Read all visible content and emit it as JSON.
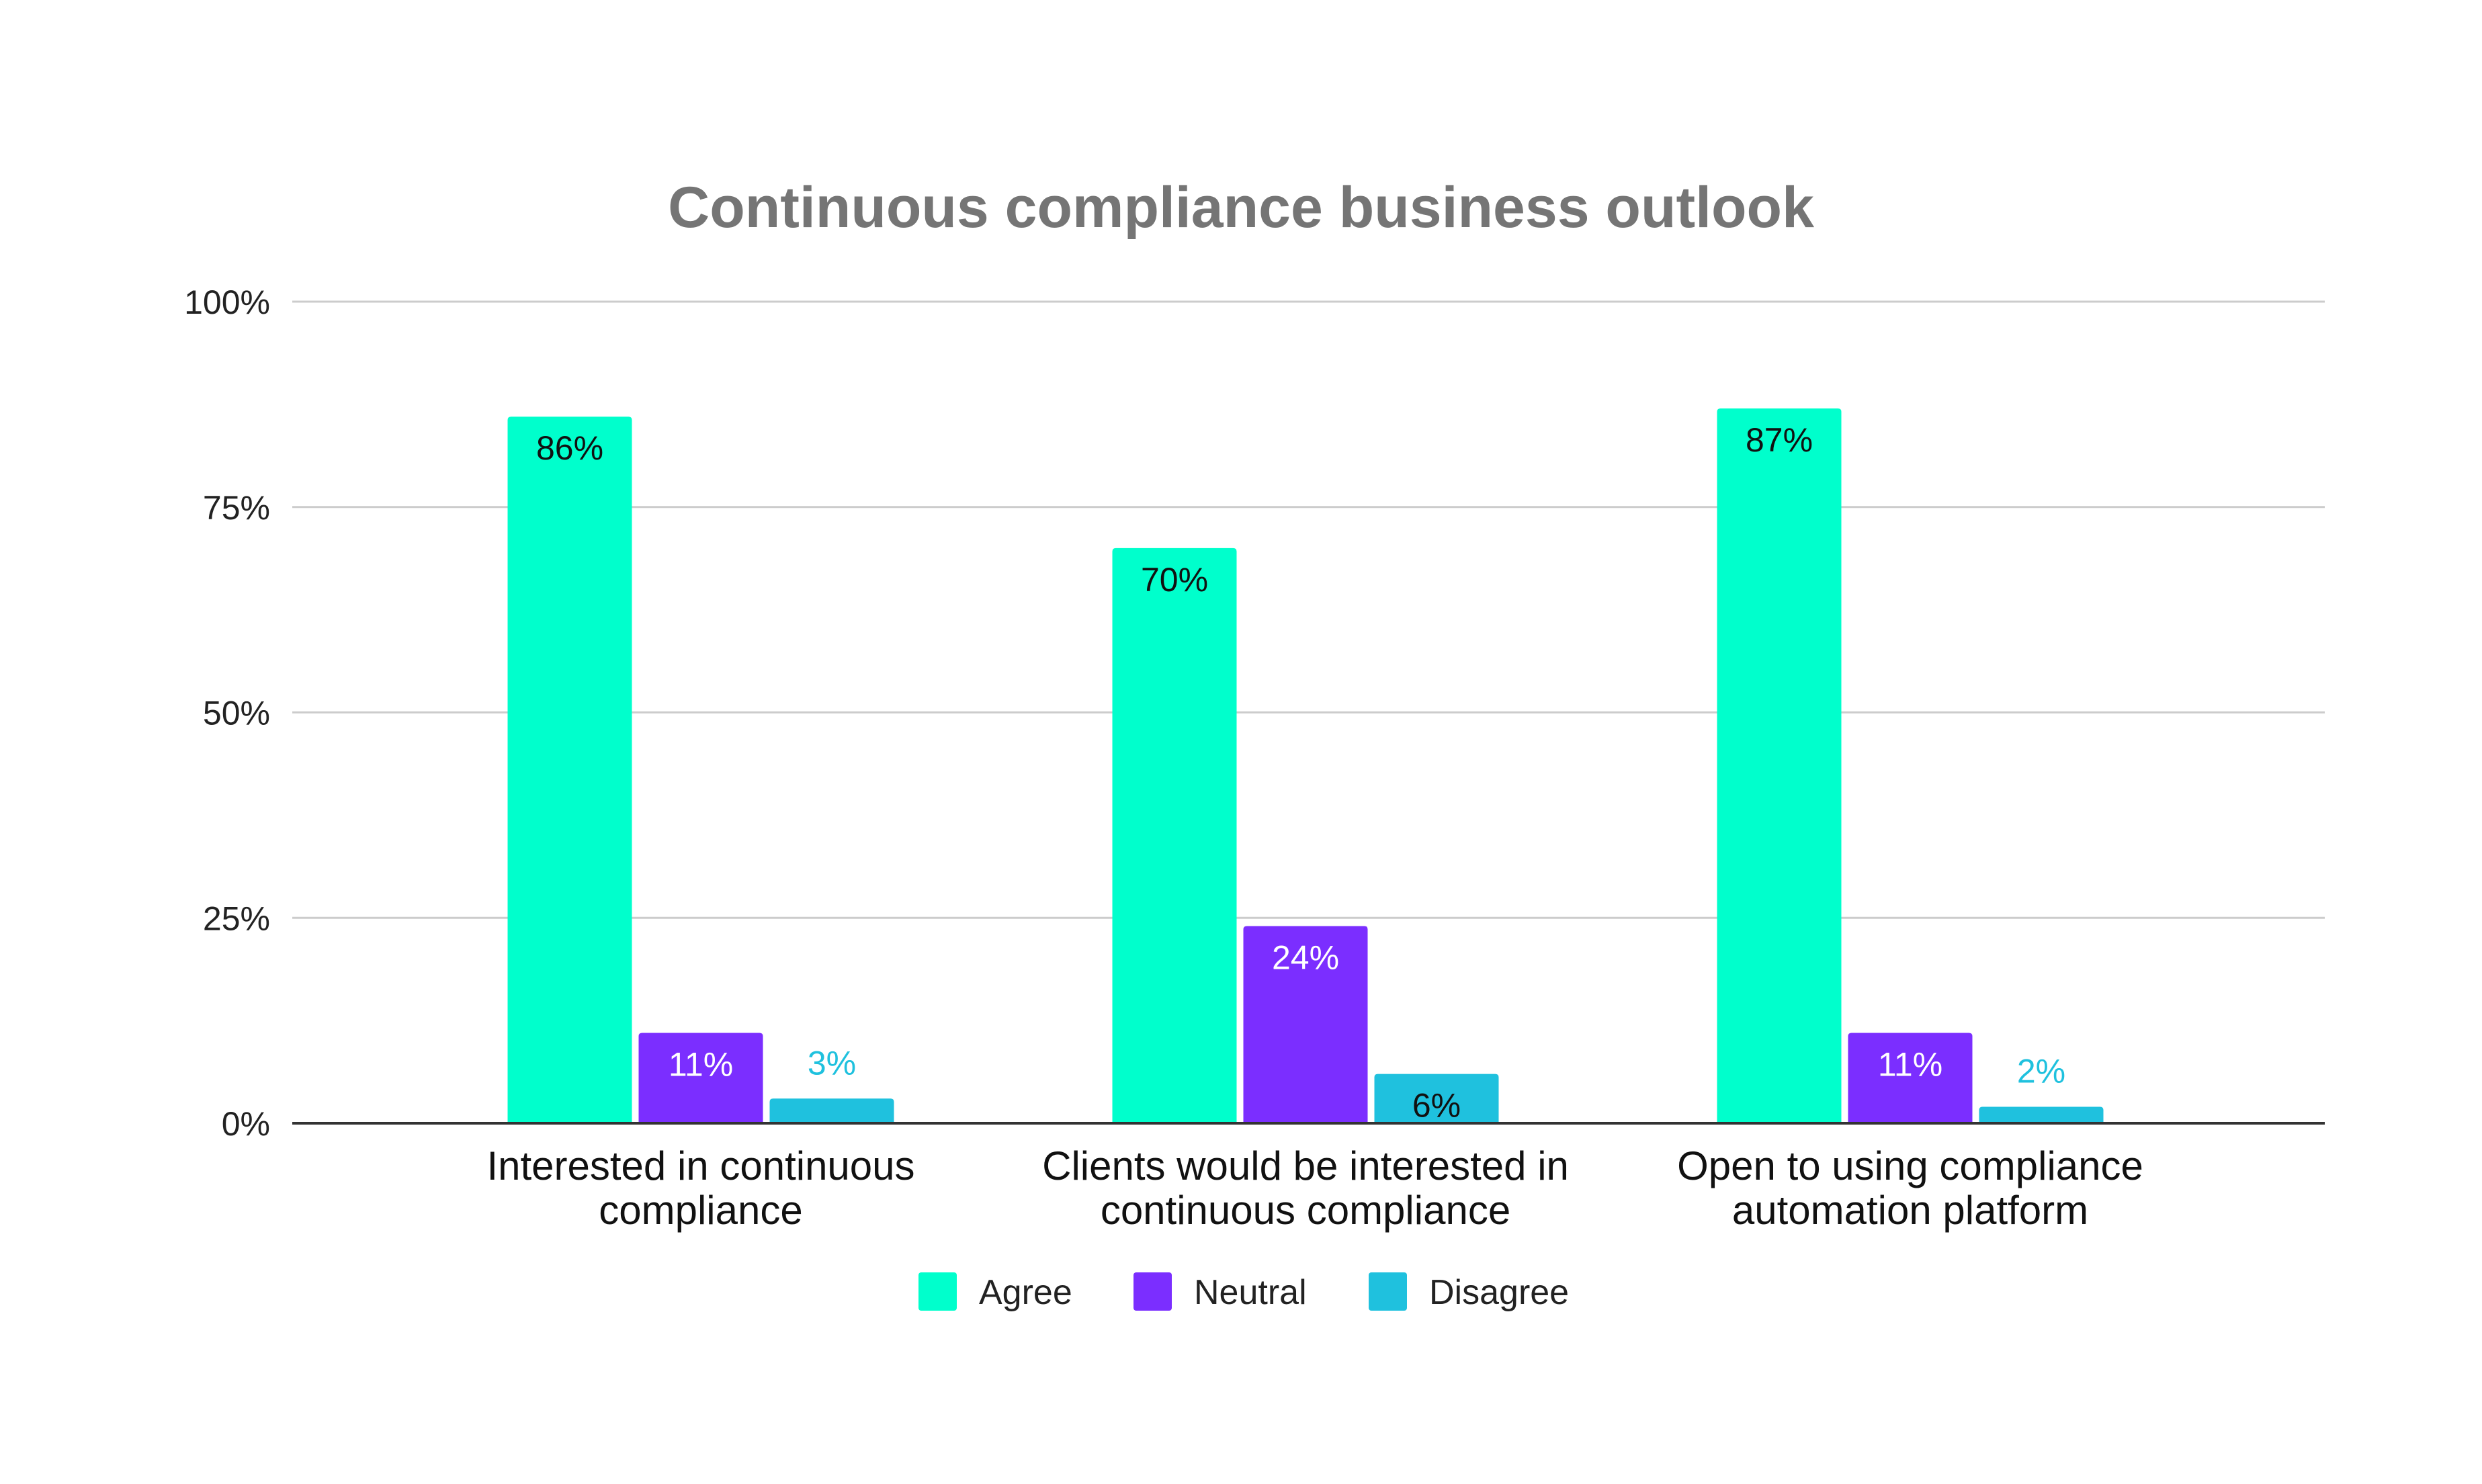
{
  "chart_data": {
    "type": "bar",
    "title": "Continuous compliance business outlook",
    "categories": [
      [
        "Interested in continuous",
        "compliance"
      ],
      [
        "Clients would be interested in",
        "continuous compliance"
      ],
      [
        "Open to using compliance",
        "automation platform"
      ]
    ],
    "series": [
      {
        "name": "Agree",
        "color": "#00FFCC",
        "values": [
          86,
          70,
          87
        ],
        "labels": [
          "86%",
          "70%",
          "87%"
        ],
        "label_color": "#111111"
      },
      {
        "name": "Neutral",
        "color": "#7B2EFF",
        "values": [
          11,
          24,
          11
        ],
        "labels": [
          "11%",
          "24%",
          "11%"
        ],
        "label_color": "#ffffff"
      },
      {
        "name": "Disagree",
        "color": "#1FC1DE",
        "values": [
          3,
          6,
          2
        ],
        "labels": [
          "3%",
          "6%",
          "2%"
        ],
        "label_color": "#111111",
        "label_outside_color": "#1FC1DE"
      }
    ],
    "ylim": [
      0,
      100
    ],
    "yticks": [
      0,
      25,
      50,
      75,
      100
    ],
    "ytick_labels": [
      "0%",
      "25%",
      "50%",
      "75%",
      "100%"
    ],
    "xlabel": "",
    "ylabel": "",
    "grid": true,
    "gridline_color": "#cccccc",
    "axis_color": "#333333",
    "legend_position": "bottom"
  }
}
